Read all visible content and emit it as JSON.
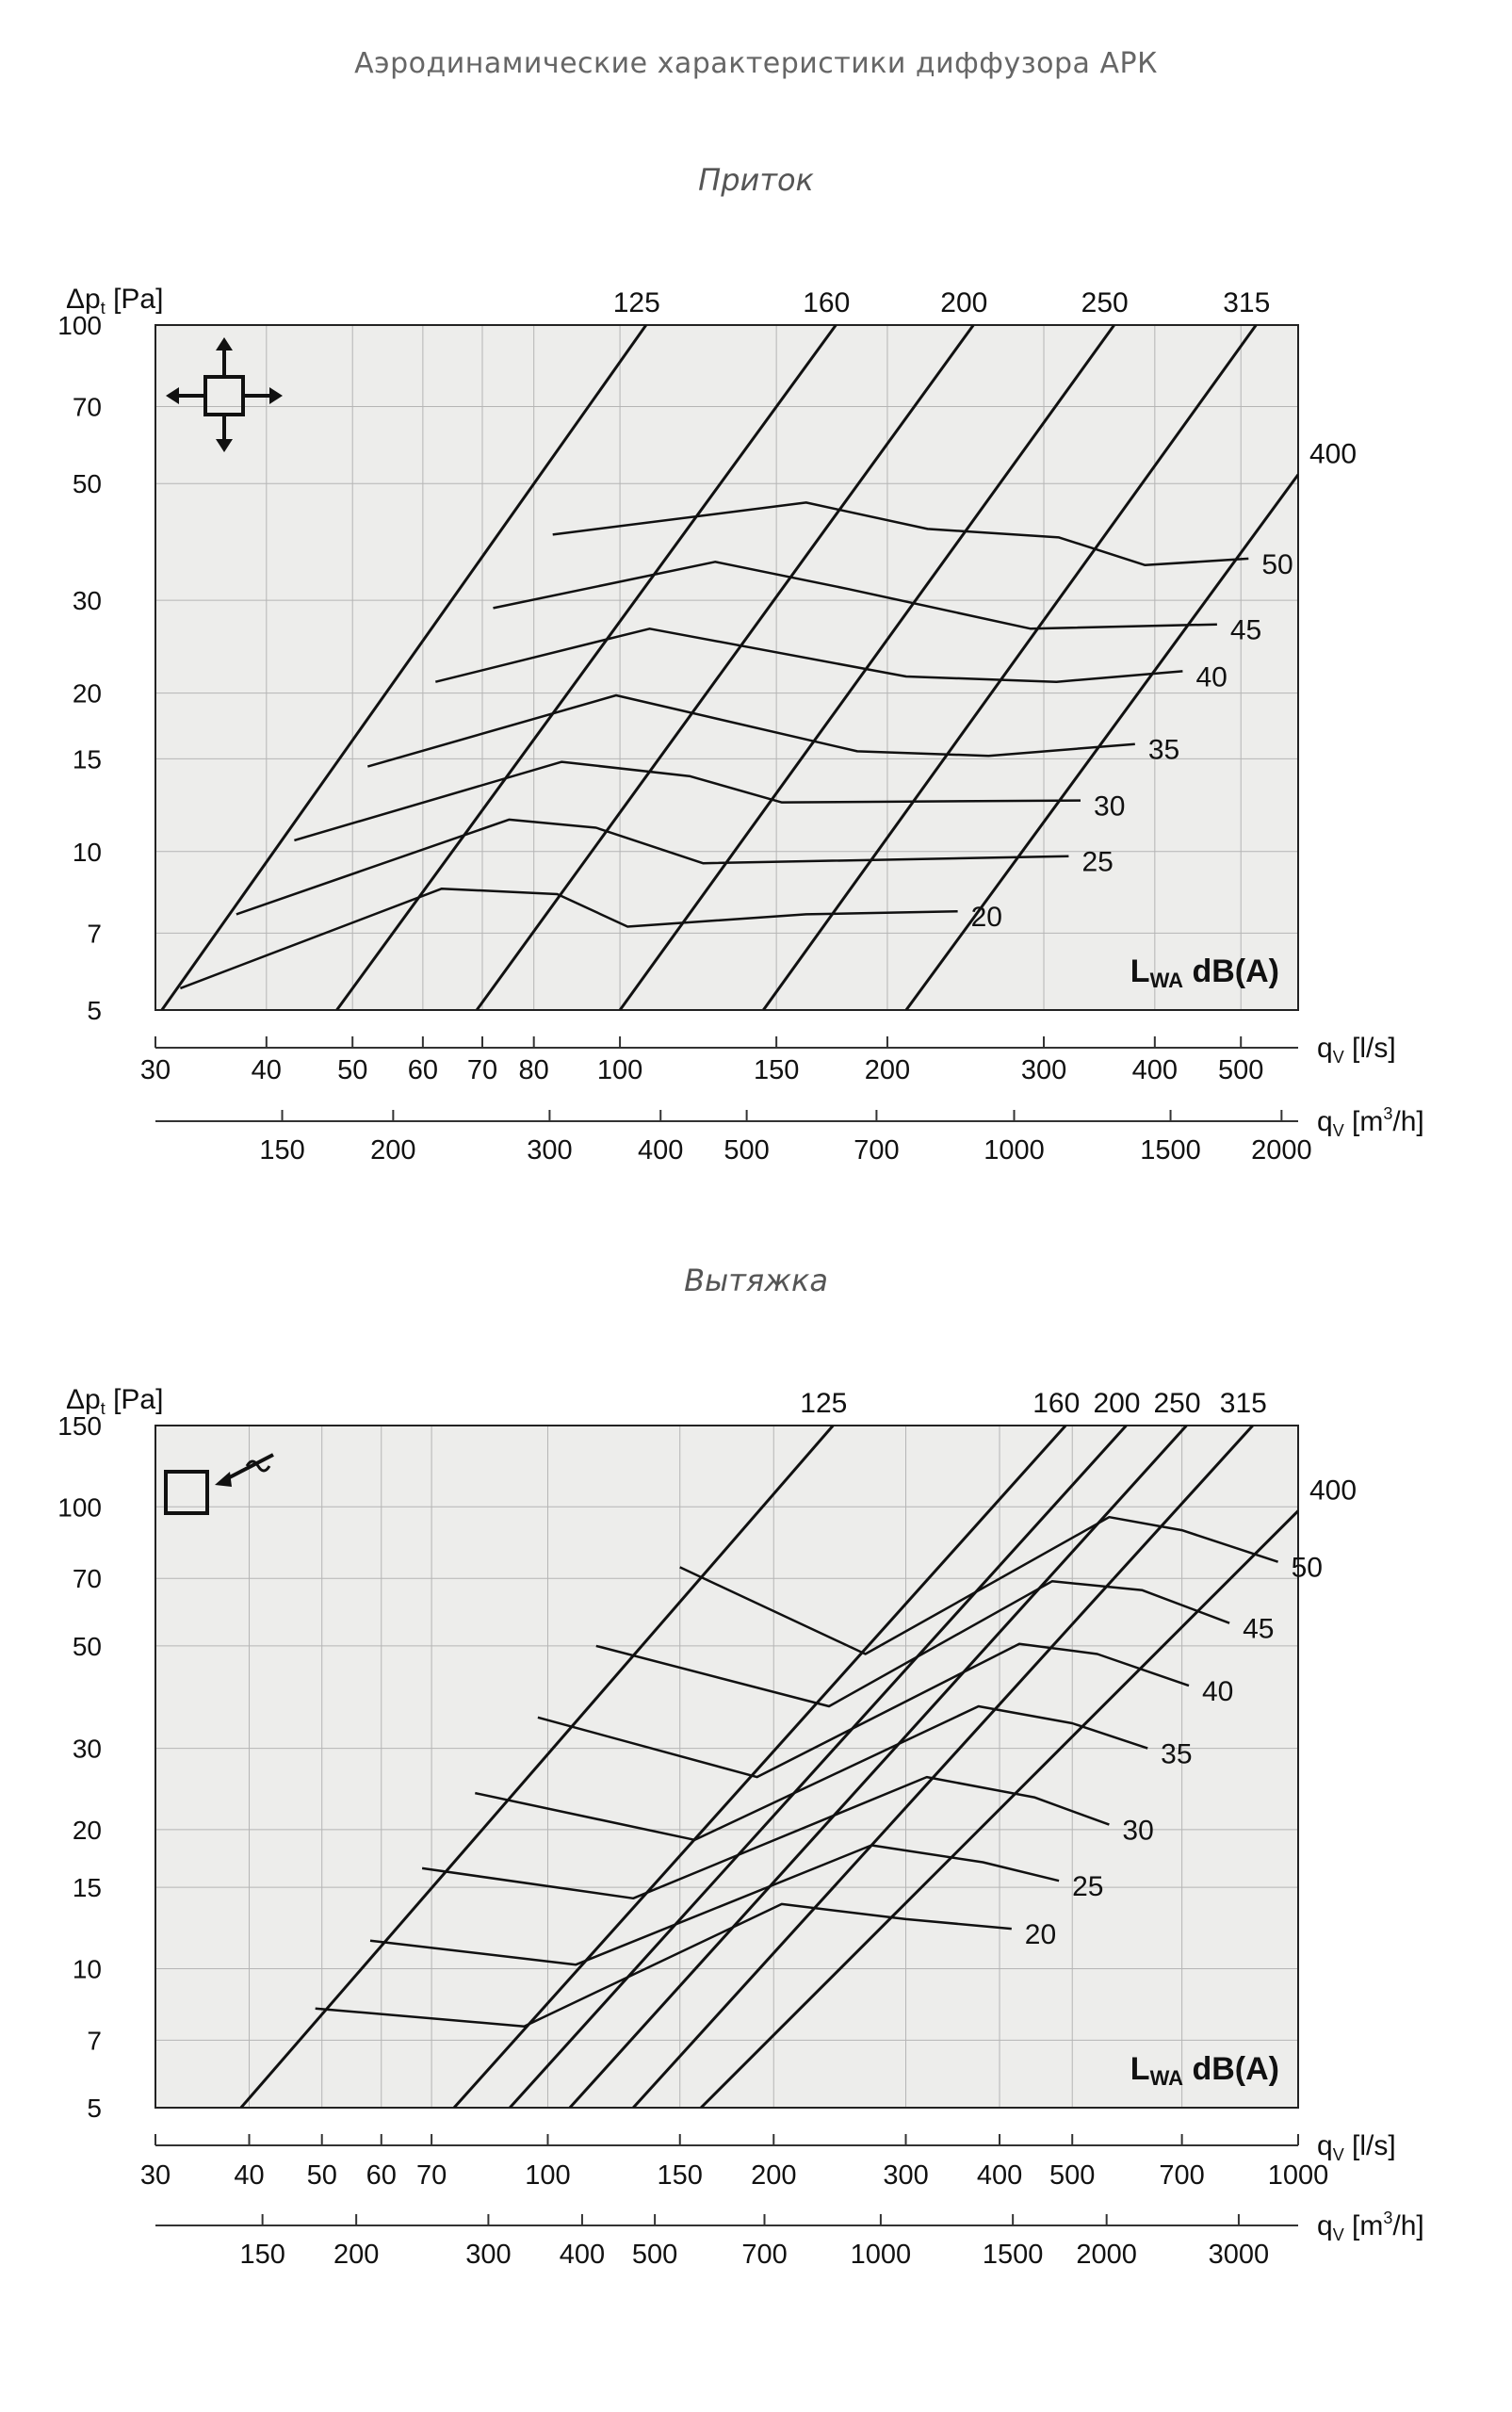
{
  "page_title": "Аэродинамические характеристики диффузора АРК",
  "chart_data": [
    {
      "type": "line",
      "title": "Приток",
      "ylabel": "Δp_t [Pa]",
      "ylabel_main": "Δp",
      "ylabel_sub": "t",
      "ylabel_unit": " [Pa]",
      "xlabel": "q_V [l/s]",
      "xlabel_main": "q",
      "xlabel_sub": "V",
      "xlabel_unit": " [l/s]",
      "xlabel2": "q_V [m³/h]",
      "xlabel2_main": "q",
      "xlabel2_sub": "V",
      "xlabel2_unit": " [m",
      "xlabel2_sup": "3",
      "xlabel2_unit2": "/h]",
      "annotation_main": "L",
      "annotation_sub": "WA",
      "annotation_rest": " dB(A)",
      "icon": "supply-arrows-icon",
      "xscale": "log",
      "yscale": "log",
      "xlim": [
        30,
        580
      ],
      "ylim": [
        5,
        100
      ],
      "y_ticks": [
        5,
        7,
        10,
        15,
        20,
        30,
        50,
        70,
        100
      ],
      "x_ticks_ls": [
        30,
        40,
        50,
        60,
        70,
        80,
        100,
        150,
        200,
        300,
        400,
        500
      ],
      "x_ticks_m3h": [
        150,
        200,
        300,
        400,
        500,
        700,
        1000,
        1500,
        2000
      ],
      "size_lines": [
        {
          "name": "125",
          "points": [
            [
              30.5,
              5
            ],
            [
              107,
              100
            ]
          ]
        },
        {
          "name": "160",
          "points": [
            [
              48,
              5
            ],
            [
              175,
              100
            ]
          ]
        },
        {
          "name": "200",
          "points": [
            [
              69,
              5
            ],
            [
              250,
              100
            ]
          ]
        },
        {
          "name": "250",
          "points": [
            [
              100,
              5
            ],
            [
              360,
              100
            ]
          ]
        },
        {
          "name": "315",
          "points": [
            [
              145,
              5
            ],
            [
              520,
              100
            ]
          ]
        },
        {
          "name": "400",
          "points": [
            [
              210,
              5
            ],
            [
              580,
              52
            ]
          ]
        }
      ],
      "sound_lines": [
        {
          "name": "20",
          "points": [
            [
              32,
              5.5
            ],
            [
              63,
              8.5
            ],
            [
              85,
              8.3
            ],
            [
              102,
              7.2
            ],
            [
              162,
              7.6
            ],
            [
              240,
              7.7
            ]
          ]
        },
        {
          "name": "25",
          "points": [
            [
              37,
              7.6
            ],
            [
              75,
              11.5
            ],
            [
              94,
              11.1
            ],
            [
              124,
              9.5
            ],
            [
              320,
              9.8
            ]
          ]
        },
        {
          "name": "30",
          "points": [
            [
              43,
              10.5
            ],
            [
              86,
              14.8
            ],
            [
              120,
              13.9
            ],
            [
              152,
              12.4
            ],
            [
              330,
              12.5
            ]
          ]
        },
        {
          "name": "35",
          "points": [
            [
              52,
              14.5
            ],
            [
              99,
              19.8
            ],
            [
              185,
              15.5
            ],
            [
              260,
              15.2
            ],
            [
              380,
              16
            ]
          ]
        },
        {
          "name": "40",
          "points": [
            [
              62,
              21
            ],
            [
              108,
              26.5
            ],
            [
              210,
              21.5
            ],
            [
              310,
              21
            ],
            [
              430,
              22
            ]
          ]
        },
        {
          "name": "45",
          "points": [
            [
              72,
              29
            ],
            [
              128,
              35.5
            ],
            [
              181,
              31.5
            ],
            [
              290,
              26.5
            ],
            [
              470,
              27
            ]
          ]
        },
        {
          "name": "50",
          "points": [
            [
              84,
              40
            ],
            [
              162,
              46
            ],
            [
              222,
              41
            ],
            [
              312,
              39.5
            ],
            [
              390,
              35
            ],
            [
              510,
              36
            ]
          ]
        }
      ]
    },
    {
      "type": "line",
      "title": "Вытяжка",
      "ylabel": "Δp_t [Pa]",
      "ylabel_main": "Δp",
      "ylabel_sub": "t",
      "ylabel_unit": " [Pa]",
      "xlabel": "q_V [l/s]",
      "xlabel_main": "q",
      "xlabel_sub": "V",
      "xlabel_unit": " [l/s]",
      "xlabel2": "q_V [m³/h]",
      "xlabel2_main": "q",
      "xlabel2_sub": "V",
      "xlabel2_unit": " [m",
      "xlabel2_sup": "3",
      "xlabel2_unit2": "/h]",
      "annotation_main": "L",
      "annotation_sub": "WA",
      "annotation_rest": " dB(A)",
      "icon": "exhaust-box-icon",
      "xscale": "log",
      "yscale": "log",
      "xlim": [
        30,
        1000
      ],
      "ylim": [
        5,
        150
      ],
      "y_ticks": [
        5,
        7,
        10,
        15,
        20,
        30,
        50,
        70,
        100,
        150
      ],
      "x_ticks_ls": [
        30,
        40,
        50,
        60,
        70,
        100,
        150,
        200,
        300,
        400,
        500,
        700,
        1000
      ],
      "x_ticks_m3h": [
        150,
        200,
        300,
        400,
        500,
        700,
        1000,
        1500,
        2000,
        3000
      ],
      "size_lines": [
        {
          "name": "125",
          "points": [
            [
              39,
              5
            ],
            [
              240,
              150
            ]
          ]
        },
        {
          "name": "160",
          "points": [
            [
              75,
              5
            ],
            [
              490,
              150
            ]
          ]
        },
        {
          "name": "200",
          "points": [
            [
              89,
              5
            ],
            [
              590,
              150
            ]
          ]
        },
        {
          "name": "250",
          "points": [
            [
              107,
              5
            ],
            [
              710,
              150
            ]
          ]
        },
        {
          "name": "315",
          "points": [
            [
              130,
              5
            ],
            [
              870,
              150
            ]
          ]
        },
        {
          "name": "400",
          "points": [
            [
              160,
              5
            ],
            [
              1000,
              98
            ]
          ]
        }
      ],
      "sound_lines": [
        {
          "name": "20",
          "points": [
            [
              49,
              8.2
            ],
            [
              93,
              7.5
            ],
            [
              205,
              13.8
            ],
            [
              300,
              12.8
            ],
            [
              415,
              12.2
            ]
          ]
        },
        {
          "name": "25",
          "points": [
            [
              58,
              11.5
            ],
            [
              109,
              10.2
            ],
            [
              270,
              18.5
            ],
            [
              380,
              17
            ],
            [
              480,
              15.5
            ]
          ]
        },
        {
          "name": "30",
          "points": [
            [
              68,
              16.5
            ],
            [
              130,
              14.2
            ],
            [
              320,
              26
            ],
            [
              445,
              23.5
            ],
            [
              560,
              20.5
            ]
          ]
        },
        {
          "name": "35",
          "points": [
            [
              80,
              24
            ],
            [
              157,
              19
            ],
            [
              375,
              37
            ],
            [
              500,
              34
            ],
            [
              630,
              30
            ]
          ]
        },
        {
          "name": "40",
          "points": [
            [
              97,
              35
            ],
            [
              190,
              26
            ],
            [
              425,
              50.5
            ],
            [
              540,
              48
            ],
            [
              715,
              41
            ]
          ]
        },
        {
          "name": "45",
          "points": [
            [
              116,
              50
            ],
            [
              237,
              37
            ],
            [
              470,
              69
            ],
            [
              620,
              66
            ],
            [
              810,
              56
            ]
          ]
        },
        {
          "name": "50",
          "points": [
            [
              150,
              74
            ],
            [
              265,
              48
            ],
            [
              560,
              95
            ],
            [
              700,
              89
            ],
            [
              940,
              76
            ]
          ]
        }
      ]
    }
  ]
}
